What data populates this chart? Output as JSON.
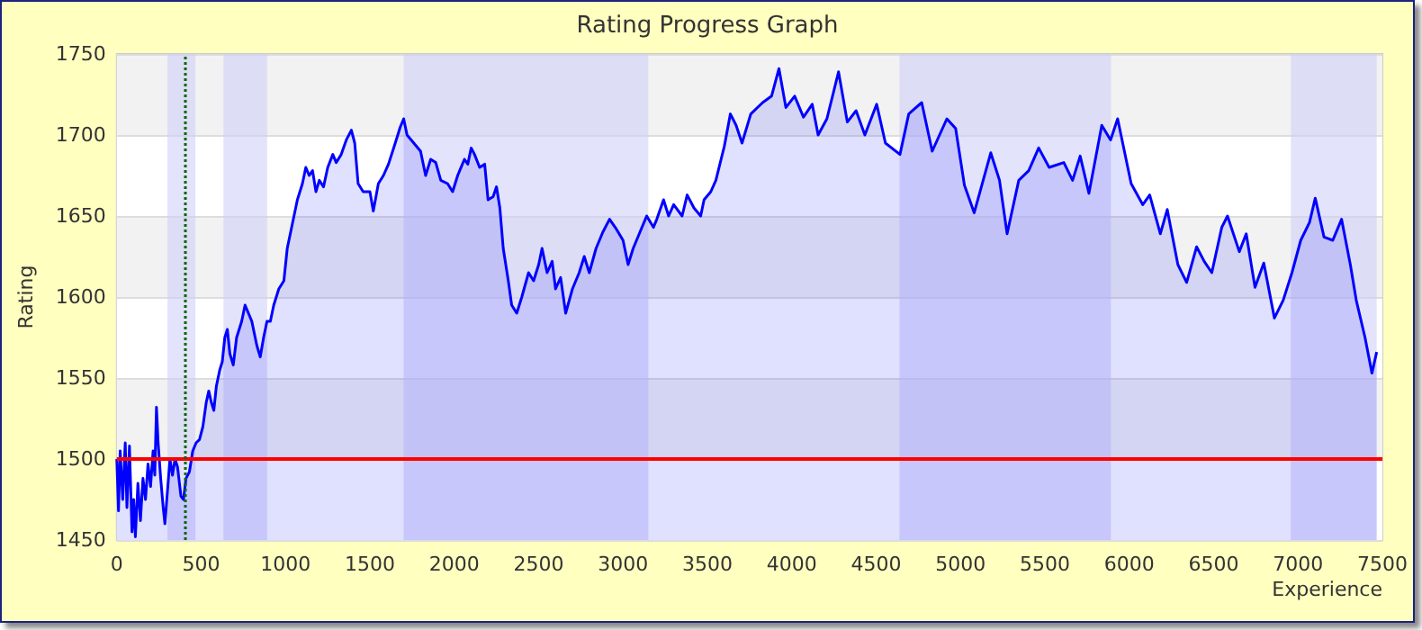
{
  "chart_data": {
    "type": "area",
    "title": "Rating Progress Graph",
    "xlabel": "Experience",
    "ylabel": "Rating",
    "x": [
      0,
      10,
      20,
      35,
      50,
      60,
      75,
      90,
      100,
      110,
      125,
      140,
      155,
      170,
      185,
      200,
      215,
      225,
      235,
      245,
      260,
      275,
      285,
      300,
      315,
      330,
      345,
      360,
      380,
      395,
      410,
      430,
      450,
      470,
      490,
      510,
      530,
      545,
      560,
      575,
      590,
      610,
      625,
      640,
      655,
      670,
      690,
      710,
      740,
      760,
      780,
      800,
      830,
      850,
      870,
      890,
      910,
      930,
      960,
      990,
      1010,
      1040,
      1070,
      1100,
      1120,
      1140,
      1160,
      1180,
      1200,
      1225,
      1250,
      1280,
      1300,
      1330,
      1360,
      1390,
      1410,
      1430,
      1460,
      1500,
      1520,
      1550,
      1580,
      1610,
      1650,
      1680,
      1700,
      1720,
      1760,
      1800,
      1830,
      1860,
      1890,
      1920,
      1960,
      1990,
      2020,
      2060,
      2080,
      2100,
      2120,
      2150,
      2180,
      2200,
      2230,
      2250,
      2270,
      2290,
      2320,
      2340,
      2370,
      2400,
      2440,
      2470,
      2500,
      2520,
      2550,
      2580,
      2600,
      2630,
      2660,
      2700,
      2740,
      2770,
      2800,
      2840,
      2880,
      2920,
      2960,
      3000,
      3030,
      3060,
      3100,
      3140,
      3180,
      3200,
      3240,
      3270,
      3300,
      3350,
      3380,
      3420,
      3460,
      3480,
      3520,
      3550,
      3600,
      3636,
      3670,
      3705,
      3757,
      3827,
      3880,
      3924,
      3965,
      4017,
      4069,
      4121,
      4156,
      4208,
      4277,
      4329,
      4381,
      4433,
      4503,
      4555,
      4641,
      4693,
      4770,
      4832,
      4919,
      4971,
      5023,
      5081,
      5179,
      5231,
      5276,
      5345,
      5404,
      5463,
      5525,
      5612,
      5664,
      5709,
      5761,
      5837,
      5889,
      5931,
      6011,
      6080,
      6121,
      6184,
      6225,
      6288,
      6340,
      6399,
      6444,
      6489,
      6548,
      6582,
      6652,
      6693,
      6745,
      6797,
      6860,
      6912,
      6964,
      7016,
      7068,
      7102,
      7154,
      7206,
      7258,
      7310,
      7345,
      7397,
      7438,
      7466
    ],
    "series": [
      {
        "color": "#0000ff",
        "values": [
          1500,
          1468,
          1505,
          1475,
          1510,
          1470,
          1508,
          1455,
          1475,
          1452,
          1485,
          1462,
          1488,
          1475,
          1497,
          1483,
          1505,
          1490,
          1532,
          1510,
          1488,
          1470,
          1460,
          1480,
          1500,
          1490,
          1500,
          1495,
          1477,
          1475,
          1488,
          1492,
          1505,
          1510,
          1512,
          1520,
          1535,
          1542,
          1535,
          1530,
          1545,
          1555,
          1560,
          1575,
          1580,
          1565,
          1558,
          1575,
          1585,
          1595,
          1590,
          1585,
          1570,
          1563,
          1575,
          1585,
          1585,
          1595,
          1605,
          1610,
          1630,
          1645,
          1660,
          1670,
          1680,
          1675,
          1678,
          1665,
          1672,
          1668,
          1680,
          1688,
          1683,
          1688,
          1697,
          1703,
          1695,
          1670,
          1665,
          1665,
          1653,
          1670,
          1675,
          1682,
          1695,
          1705,
          1710,
          1700,
          1695,
          1690,
          1675,
          1685,
          1683,
          1672,
          1670,
          1665,
          1675,
          1685,
          1682,
          1692,
          1688,
          1680,
          1682,
          1660,
          1662,
          1668,
          1655,
          1630,
          1610,
          1595,
          1590,
          1600,
          1615,
          1610,
          1620,
          1630,
          1615,
          1622,
          1605,
          1612,
          1590,
          1605,
          1615,
          1625,
          1615,
          1630,
          1640,
          1648,
          1642,
          1635,
          1620,
          1630,
          1640,
          1650,
          1643,
          1648,
          1660,
          1650,
          1657,
          1650,
          1663,
          1655,
          1650,
          1660,
          1665,
          1672,
          1693,
          1713,
          1706,
          1695,
          1713,
          1720,
          1724,
          1741,
          1717,
          1724,
          1711,
          1719,
          1700,
          1710,
          1739,
          1708,
          1715,
          1700,
          1719,
          1695,
          1688,
          1713,
          1720,
          1690,
          1710,
          1704,
          1669,
          1652,
          1689,
          1672,
          1639,
          1672,
          1678,
          1692,
          1680,
          1683,
          1672,
          1687,
          1664,
          1706,
          1697,
          1710,
          1670,
          1657,
          1663,
          1639,
          1654,
          1620,
          1609,
          1631,
          1622,
          1615,
          1643,
          1650,
          1628,
          1639,
          1606,
          1621,
          1587,
          1598,
          1615,
          1635,
          1646,
          1661,
          1637,
          1635,
          1648,
          1620,
          1598,
          1575,
          1553,
          1566
        ]
      }
    ],
    "xlim": [
      0,
      7500
    ],
    "xticks": [
      0,
      500,
      1000,
      1500,
      2000,
      2500,
      3000,
      3500,
      4000,
      4500,
      5000,
      5500,
      6000,
      6500,
      7000,
      7500
    ],
    "ylim": [
      1450,
      1750
    ],
    "yticks": [
      1450,
      1500,
      1550,
      1600,
      1650,
      1700,
      1750
    ],
    "grid": "y",
    "marker": "none",
    "line_style": "solid",
    "ref_lines": [
      {
        "axis": "y",
        "value": 1500,
        "color": "#ff0000",
        "line_style": "solid"
      },
      {
        "axis": "x",
        "value": 400,
        "color": "#006600",
        "line_style": "dotted"
      }
    ],
    "bands": [
      {
        "axis": "x",
        "from": 300,
        "to": 466,
        "color": "#ccccf8"
      },
      {
        "axis": "x",
        "from": 632,
        "to": 891,
        "color": "#ccccf8"
      },
      {
        "axis": "x",
        "from": 1700,
        "to": 3150,
        "color": "#ccccf8"
      },
      {
        "axis": "x",
        "from": 4638,
        "to": 5891,
        "color": "#ccccf8"
      },
      {
        "axis": "x",
        "from": 6957,
        "to": 7466,
        "color": "#ccccf8"
      }
    ]
  }
}
